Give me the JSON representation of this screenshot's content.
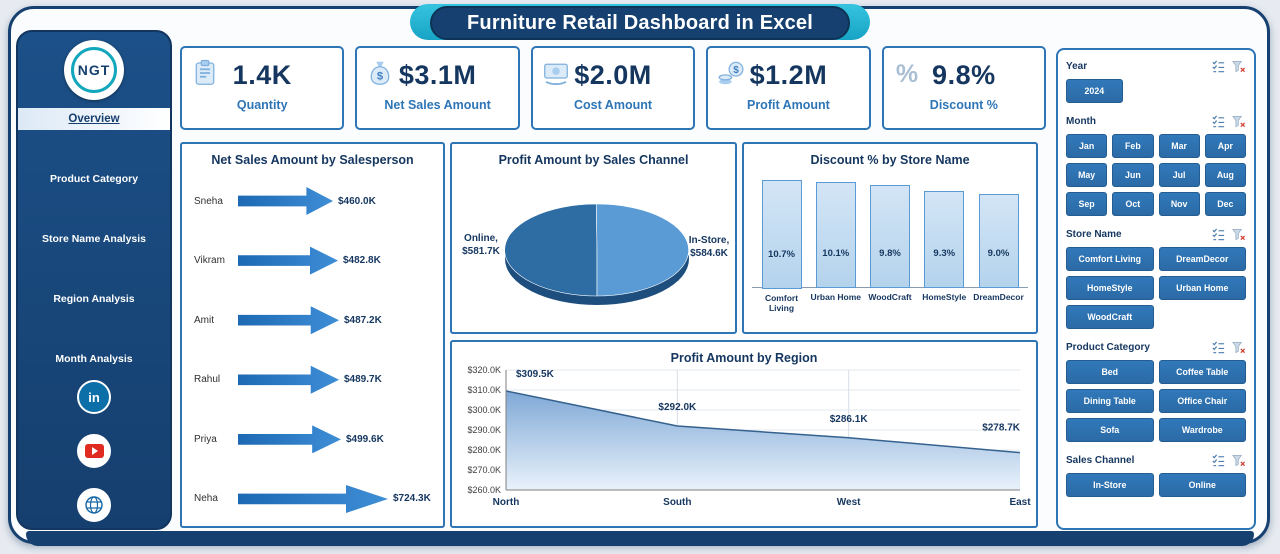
{
  "page": {
    "title": "Furniture Retail Dashboard in Excel"
  },
  "sidebar": {
    "logo": "NGT",
    "nav_items": [
      {
        "label": "Overview",
        "active": true
      },
      {
        "label": "Product Category",
        "active": false
      },
      {
        "label": "Store Name Analysis",
        "active": false
      },
      {
        "label": "Region Analysis",
        "active": false
      },
      {
        "label": "Month Analysis",
        "active": false
      }
    ],
    "social_icons": [
      "linkedin-icon",
      "youtube-icon",
      "globe-icon"
    ]
  },
  "kpi_cards": [
    {
      "icon": "clipboard-icon",
      "value": "1.4K",
      "label": "Quantity"
    },
    {
      "icon": "money-bag-icon",
      "value": "$3.1M",
      "label": "Net Sales Amount"
    },
    {
      "icon": "cash-hand-icon",
      "value": "$2.0M",
      "label": "Cost Amount"
    },
    {
      "icon": "coins-bag-icon",
      "value": "$1.2M",
      "label": "Profit Amount"
    },
    {
      "icon": "percent-icon",
      "value": "9.8%",
      "label": "Discount %"
    }
  ],
  "chart_data": [
    {
      "type": "bar",
      "orientation": "horizontal",
      "title": "Net Sales Amount by Salesperson",
      "categories": [
        "Sneha",
        "Vikram",
        "Amit",
        "Rahul",
        "Priya",
        "Neha"
      ],
      "values": [
        460.0,
        482.8,
        487.2,
        489.7,
        499.6,
        724.3
      ],
      "labels": [
        "$460.0K",
        "$482.8K",
        "$487.2K",
        "$489.7K",
        "$499.6K",
        "$724.3K"
      ],
      "unit": "thousand USD"
    },
    {
      "type": "pie",
      "title": "Profit Amount by Sales Channel",
      "slices": [
        {
          "name": "Online",
          "value": 581.7,
          "label": "Online, $581.7K",
          "color": "#2E6DA4"
        },
        {
          "name": "In-Store",
          "value": 584.6,
          "label": "In-Store, $584.6K",
          "color": "#5B9BD5"
        }
      ]
    },
    {
      "type": "bar",
      "title": "Discount % by Store Name",
      "categories": [
        "Comfort Living",
        "Urban Home",
        "WoodCraft",
        "HomeStyle",
        "DreamDecor"
      ],
      "values": [
        10.7,
        10.1,
        9.8,
        9.3,
        9.0
      ],
      "labels": [
        "10.7%",
        "10.1%",
        "9.8%",
        "9.3%",
        "9.0%"
      ]
    },
    {
      "type": "area",
      "title": "Profit Amount by Region",
      "categories": [
        "North",
        "South",
        "West",
        "East"
      ],
      "values": [
        309.5,
        292.0,
        286.1,
        278.7
      ],
      "labels": [
        "$309.5K",
        "$292.0K",
        "$286.1K",
        "$278.7K"
      ],
      "ylim": [
        260,
        320
      ],
      "ytick_labels": [
        "$320.0K",
        "$310.0K",
        "$300.0K",
        "$290.0K",
        "$280.0K",
        "$270.0K",
        "$260.0K"
      ],
      "grid": true,
      "legend": "none"
    }
  ],
  "slicers": [
    {
      "label": "Year",
      "cols": 3,
      "items": [
        "2024"
      ]
    },
    {
      "label": "Month",
      "cols": 4,
      "items": [
        "Jan",
        "Feb",
        "Mar",
        "Apr",
        "May",
        "Jun",
        "Jul",
        "Aug",
        "Sep",
        "Oct",
        "Nov",
        "Dec"
      ]
    },
    {
      "label": "Store Name",
      "cols": 2,
      "items": [
        "Comfort Living",
        "DreamDecor",
        "HomeStyle",
        "Urban Home",
        "WoodCraft"
      ]
    },
    {
      "label": "Product Category",
      "cols": 2,
      "items": [
        "Bed",
        "Coffee Table",
        "Dining Table",
        "Office Chair",
        "Sofa",
        "Wardrobe"
      ]
    },
    {
      "label": "Sales Channel",
      "cols": 2,
      "items": [
        "In-Store",
        "Online"
      ]
    }
  ],
  "colors": {
    "navy": "#16406F",
    "accent_blue": "#2E75B6",
    "light_blue": "#BDD7EE",
    "cyan": "#29B9D8",
    "dark_text": "#15365F"
  }
}
